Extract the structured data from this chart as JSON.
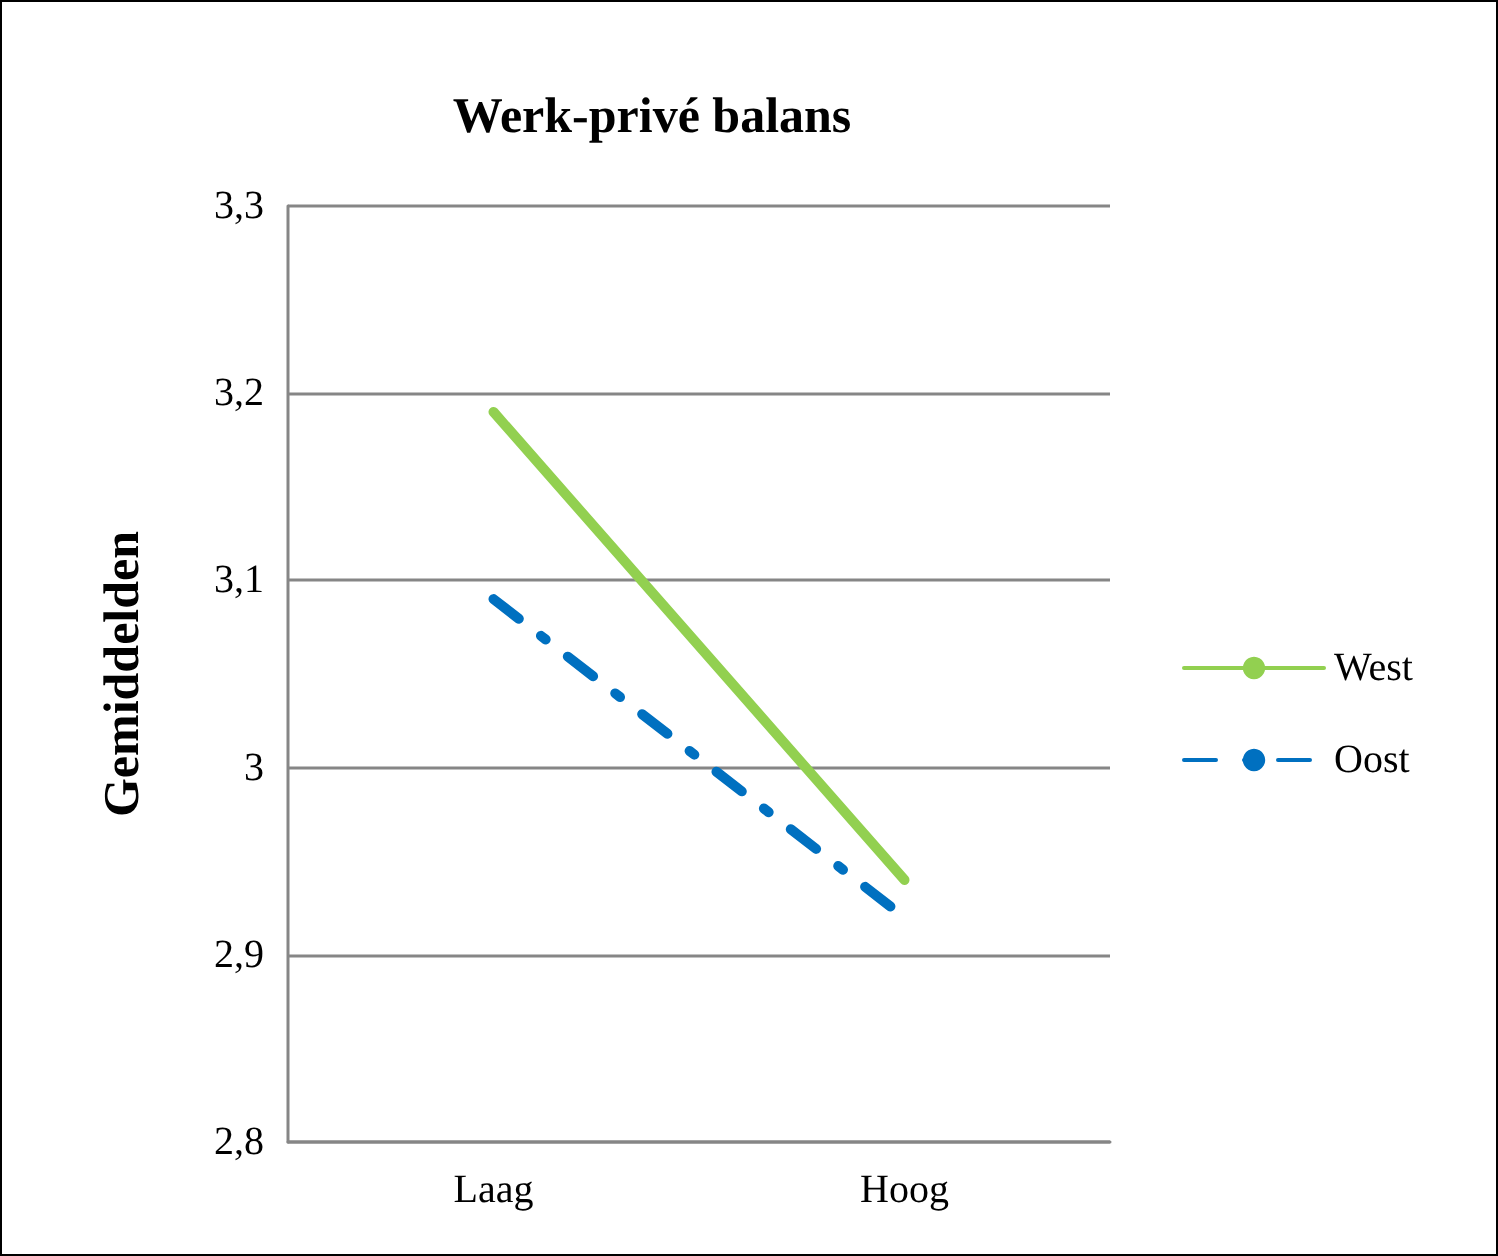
{
  "chart_data": {
    "type": "line",
    "title": "Werk-privé balans",
    "ylabel": "Gemiddelden",
    "categories": [
      "Laag",
      "Hoog"
    ],
    "series": [
      {
        "name": "West",
        "color": "#92d050",
        "values": [
          3.19,
          2.94
        ],
        "line_style": "solid"
      },
      {
        "name": "Oost",
        "color": "#0070c0",
        "values": [
          3.09,
          2.92
        ],
        "line_style": "dashdot"
      }
    ],
    "ylim": [
      2.8,
      3.3
    ],
    "yticks": [
      {
        "value": 2.8,
        "label": "2,8"
      },
      {
        "value": 2.9,
        "label": "2,9"
      },
      {
        "value": 3,
        "label": "3"
      },
      {
        "value": 3.1,
        "label": "3,1"
      },
      {
        "value": 3.2,
        "label": "3,2"
      },
      {
        "value": 3.3,
        "label": "3,3"
      }
    ],
    "grid": "y",
    "legend": "right",
    "marker": "none"
  }
}
